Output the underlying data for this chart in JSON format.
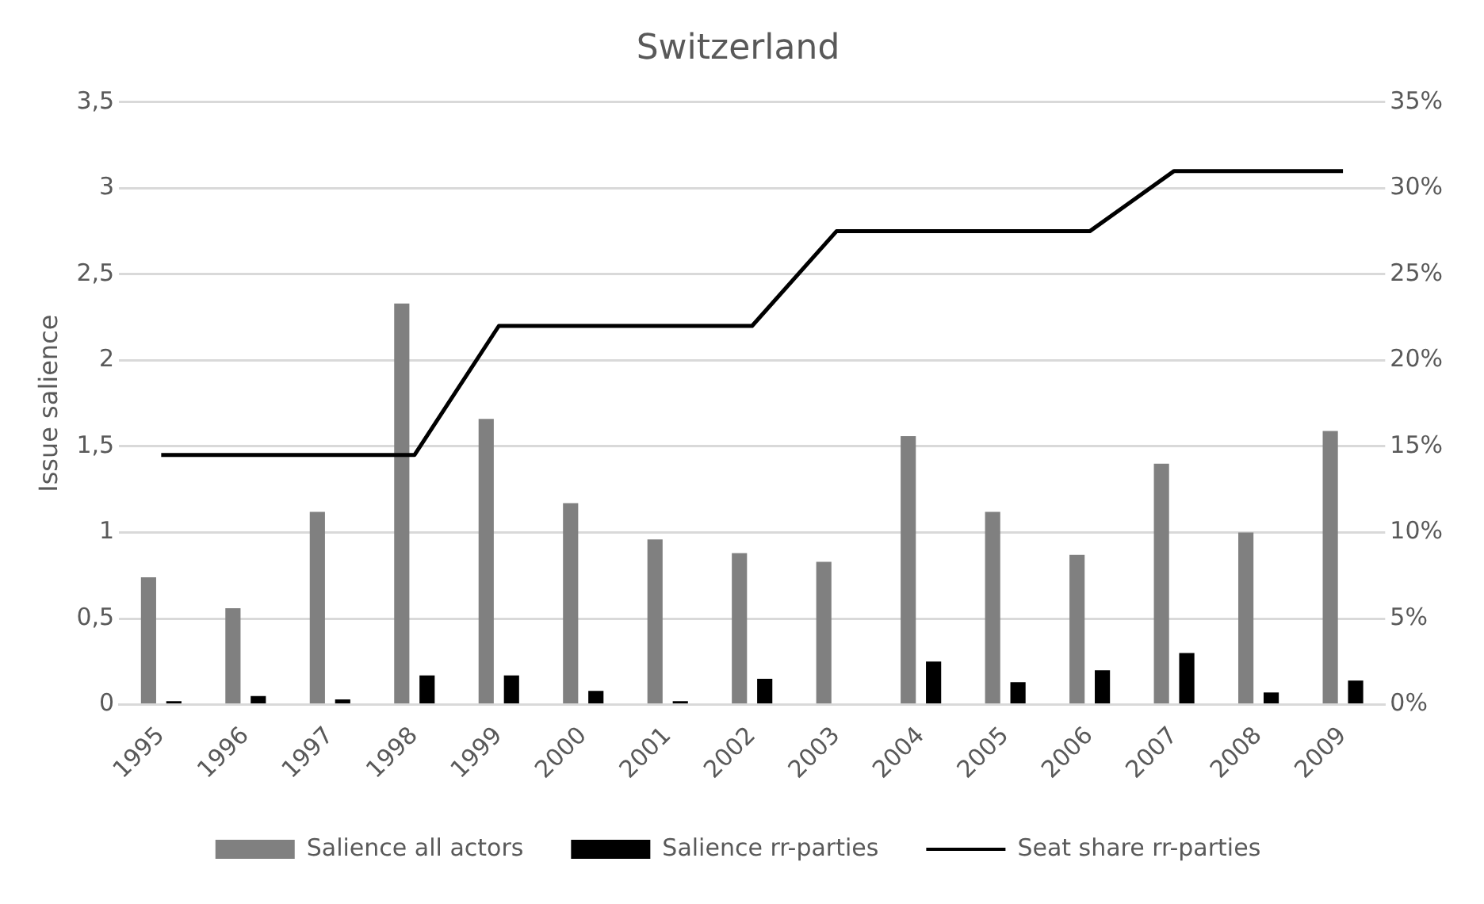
{
  "chart_data": {
    "type": "bar",
    "title": "Switzerland",
    "ylabel": "Issue salience",
    "categories": [
      "1995",
      "1996",
      "1997",
      "1998",
      "1999",
      "2000",
      "2001",
      "2002",
      "2003",
      "2004",
      "2005",
      "2006",
      "2007",
      "2008",
      "2009"
    ],
    "series": [
      {
        "name": "Salience all actors",
        "color": "#808080",
        "values": [
          0.74,
          0.56,
          1.12,
          2.33,
          1.66,
          1.17,
          0.96,
          0.88,
          0.83,
          1.56,
          1.12,
          0.87,
          1.4,
          1.0,
          1.59
        ]
      },
      {
        "name": "Salience rr-parties",
        "color": "#000000",
        "values": [
          0.02,
          0.05,
          0.03,
          0.17,
          0.17,
          0.08,
          0.02,
          0.15,
          0,
          0.25,
          0.13,
          0.2,
          0.3,
          0.07,
          0.14
        ]
      },
      {
        "name": "Seat share rr-parties",
        "type": "line",
        "axis": "y2",
        "color": "#000000",
        "values": [
          14.5,
          14.5,
          14.5,
          14.5,
          22,
          22,
          22,
          22,
          27.5,
          27.5,
          27.5,
          27.5,
          31,
          31,
          31
        ]
      }
    ],
    "ylim": [
      0,
      3.5
    ],
    "yticks": [
      0,
      {
        "value": 0.5,
        "label": "0,5"
      },
      1,
      {
        "value": 1.5,
        "label": "1,5"
      },
      2,
      {
        "value": 2.5,
        "label": "2,5"
      },
      3,
      {
        "value": 3.5,
        "label": "3,5"
      }
    ],
    "y2lim": [
      0,
      35
    ],
    "y2ticks": [
      {
        "value": 0,
        "label": "0%"
      },
      {
        "value": 5,
        "label": "5%"
      },
      {
        "value": 10,
        "label": "10%"
      },
      {
        "value": 15,
        "label": "15%"
      },
      {
        "value": 20,
        "label": "20%"
      },
      {
        "value": 25,
        "label": "25%"
      },
      {
        "value": 30,
        "label": "30%"
      },
      {
        "value": 35,
        "label": "35%"
      }
    ],
    "grid": "y",
    "legend": "bottom",
    "marker": "none",
    "line_style": "solid"
  }
}
